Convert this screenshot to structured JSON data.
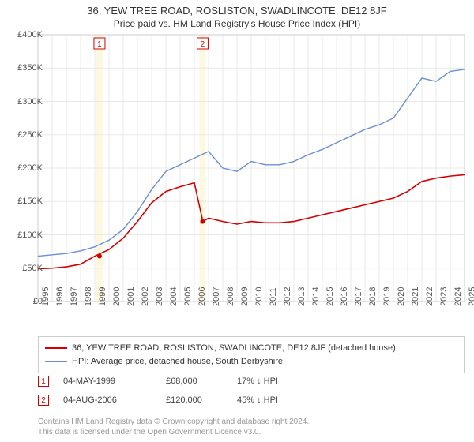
{
  "title": "36, YEW TREE ROAD, ROSLISTON, SWADLINCOTE, DE12 8JF",
  "subtitle": "Price paid vs. HM Land Registry's House Price Index (HPI)",
  "chart": {
    "type": "line",
    "background_color": "#ffffff",
    "grid_color": "#e8e8e8",
    "axis_color": "#cccccc",
    "plot_border_color": "#cccccc",
    "ylim": [
      0,
      400000
    ],
    "ytick_step": 50000,
    "yticks": [
      "£0",
      "£50K",
      "£100K",
      "£150K",
      "£200K",
      "£250K",
      "£300K",
      "£350K",
      "£400K"
    ],
    "x_years": [
      1995,
      1996,
      1997,
      1998,
      1999,
      2000,
      2001,
      2002,
      2003,
      2004,
      2005,
      2006,
      2007,
      2008,
      2009,
      2010,
      2011,
      2012,
      2013,
      2014,
      2015,
      2016,
      2017,
      2018,
      2019,
      2020,
      2021,
      2022,
      2023,
      2024,
      2025
    ],
    "series": [
      {
        "name": "property",
        "label": "36, YEW TREE ROAD, ROSLISTON, SWADLINCOTE, DE12 8JF (detached house)",
        "color": "#d40000",
        "line_width": 1.6,
        "data": [
          [
            1995,
            49000
          ],
          [
            1996,
            50000
          ],
          [
            1997,
            52000
          ],
          [
            1998,
            56000
          ],
          [
            1999,
            68000
          ],
          [
            2000,
            78000
          ],
          [
            2001,
            95000
          ],
          [
            2002,
            120000
          ],
          [
            2003,
            148000
          ],
          [
            2004,
            165000
          ],
          [
            2005,
            172000
          ],
          [
            2006,
            178000
          ],
          [
            2006.6,
            120000
          ],
          [
            2007,
            125000
          ],
          [
            2008,
            120000
          ],
          [
            2009,
            116000
          ],
          [
            2010,
            120000
          ],
          [
            2011,
            118000
          ],
          [
            2012,
            118000
          ],
          [
            2013,
            120000
          ],
          [
            2014,
            125000
          ],
          [
            2015,
            130000
          ],
          [
            2016,
            135000
          ],
          [
            2017,
            140000
          ],
          [
            2018,
            145000
          ],
          [
            2019,
            150000
          ],
          [
            2020,
            155000
          ],
          [
            2021,
            165000
          ],
          [
            2022,
            180000
          ],
          [
            2023,
            185000
          ],
          [
            2024,
            188000
          ],
          [
            2025,
            190000
          ]
        ]
      },
      {
        "name": "hpi",
        "label": "HPI: Average price, detached house, South Derbyshire",
        "color": "#6a8fd8",
        "line_width": 1.4,
        "data": [
          [
            1995,
            68000
          ],
          [
            1996,
            70000
          ],
          [
            1997,
            72000
          ],
          [
            1998,
            76000
          ],
          [
            1999,
            82000
          ],
          [
            2000,
            92000
          ],
          [
            2001,
            108000
          ],
          [
            2002,
            135000
          ],
          [
            2003,
            168000
          ],
          [
            2004,
            195000
          ],
          [
            2005,
            205000
          ],
          [
            2006,
            215000
          ],
          [
            2007,
            225000
          ],
          [
            2008,
            200000
          ],
          [
            2009,
            195000
          ],
          [
            2010,
            210000
          ],
          [
            2011,
            205000
          ],
          [
            2012,
            205000
          ],
          [
            2013,
            210000
          ],
          [
            2014,
            220000
          ],
          [
            2015,
            228000
          ],
          [
            2016,
            238000
          ],
          [
            2017,
            248000
          ],
          [
            2018,
            258000
          ],
          [
            2019,
            265000
          ],
          [
            2020,
            275000
          ],
          [
            2021,
            305000
          ],
          [
            2022,
            335000
          ],
          [
            2023,
            330000
          ],
          [
            2024,
            345000
          ],
          [
            2025,
            348000
          ]
        ]
      }
    ],
    "sale_markers": [
      {
        "n": "1",
        "year": 1999.33,
        "price": 68000,
        "color": "#d40000",
        "band_color": "#fff3cc"
      },
      {
        "n": "2",
        "year": 2006.58,
        "price": 120000,
        "color": "#d40000",
        "band_color": "#fff3cc"
      }
    ],
    "band_opacity": 0.6
  },
  "sales_table": [
    {
      "n": "1",
      "date": "04-MAY-1999",
      "price": "£68,000",
      "delta": "17% ↓ HPI",
      "color": "#d40000"
    },
    {
      "n": "2",
      "date": "04-AUG-2006",
      "price": "£120,000",
      "delta": "45% ↓ HPI",
      "color": "#d40000"
    }
  ],
  "footer": [
    "Contains HM Land Registry data © Crown copyright and database right 2024.",
    "This data is licensed under the Open Government Licence v3.0."
  ]
}
